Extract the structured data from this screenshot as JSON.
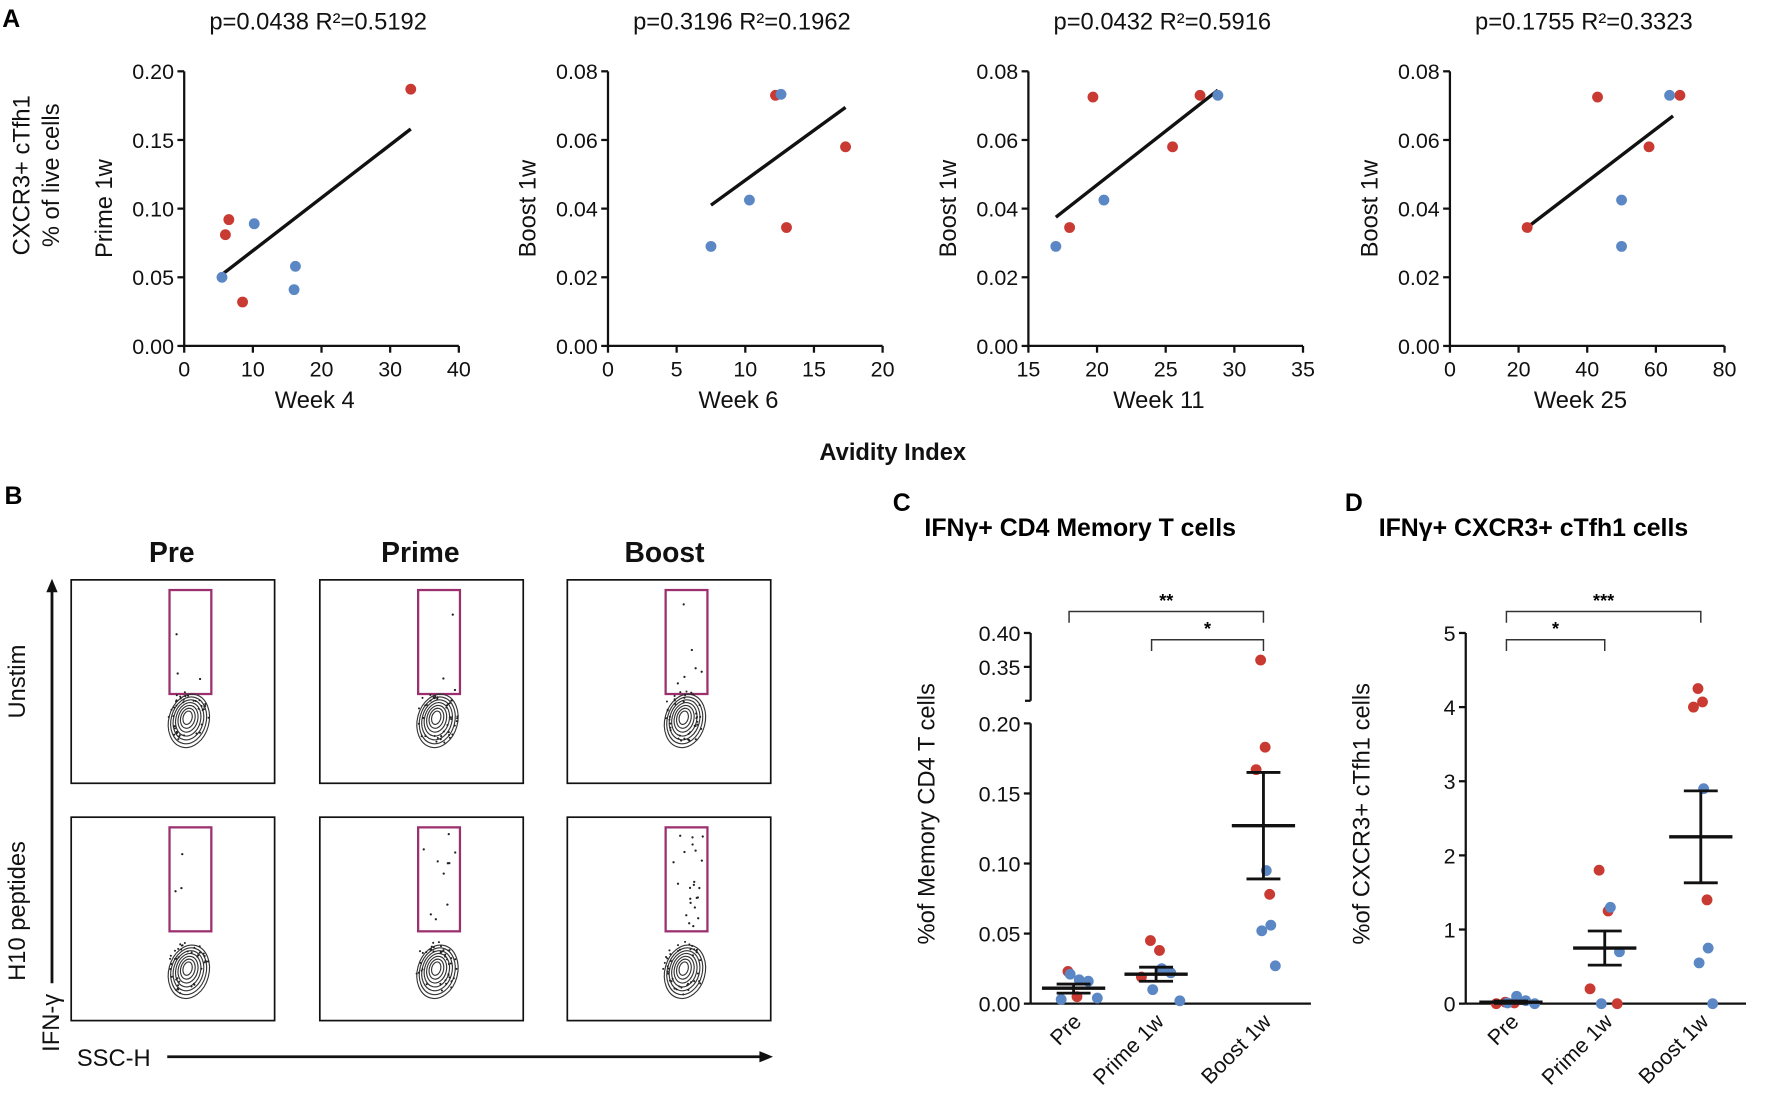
{
  "panel_labels": {
    "a": "A",
    "b": "B",
    "c": "C",
    "d": "D"
  },
  "shared_x_label": "Avidity Index",
  "panel_a_outer_ylabel": [
    "CXCR3+ cTfh1",
    "% of live cells"
  ],
  "colors": {
    "red": "#c83a32",
    "blue": "#5b87c5",
    "gate": "#9c2f6e",
    "line": "#111111"
  },
  "panel_b": {
    "columns": [
      "Pre",
      "Prime",
      "Boost"
    ],
    "rows": [
      "Unstim",
      "H10 peptides"
    ],
    "y_axis_label": "IFN-γ",
    "x_axis_label": "SSC-H"
  },
  "chart_data": [
    {
      "type": "scatter",
      "panel": "A1",
      "title": "p=0.0438 R²=0.5192",
      "xlabel": "Week 4",
      "ylabel": "Prime 1w",
      "xlim": [
        0,
        40
      ],
      "ylim": [
        0,
        0.2
      ],
      "xticks": [
        "0",
        "10",
        "20",
        "30",
        "40"
      ],
      "yticks": [
        "0.00",
        "0.05",
        "0.10",
        "0.15",
        "0.20"
      ],
      "series": [
        {
          "name": "red",
          "points": [
            [
              33,
              0.187
            ],
            [
              6.5,
              0.092
            ],
            [
              6,
              0.081
            ],
            [
              8.5,
              0.032
            ]
          ]
        },
        {
          "name": "blue",
          "points": [
            [
              10.2,
              0.089
            ],
            [
              16.2,
              0.058
            ],
            [
              16,
              0.041
            ],
            [
              5.5,
              0.05
            ]
          ]
        }
      ],
      "fit": [
        [
          5.5,
          0.052
        ],
        [
          33,
          0.158
        ]
      ]
    },
    {
      "type": "scatter",
      "panel": "A2",
      "title": "p=0.3196 R²=0.1962",
      "xlabel": "Week 6",
      "ylabel": "Boost 1w",
      "xlim": [
        0,
        20
      ],
      "ylim": [
        0,
        0.08
      ],
      "xticks": [
        "0",
        "5",
        "10",
        "15",
        "20"
      ],
      "yticks": [
        "0.00",
        "0.02",
        "0.04",
        "0.06",
        "0.08"
      ],
      "series": [
        {
          "name": "red",
          "points": [
            [
              12.2,
              0.073
            ],
            [
              13,
              0.0345
            ],
            [
              17.3,
              0.058
            ]
          ]
        },
        {
          "name": "blue",
          "points": [
            [
              7.5,
              0.029
            ],
            [
              10.3,
              0.0425
            ],
            [
              12.6,
              0.0733
            ]
          ]
        }
      ],
      "fit": [
        [
          7.5,
          0.041
        ],
        [
          17.3,
          0.0695
        ]
      ]
    },
    {
      "type": "scatter",
      "panel": "A3",
      "title": "p=0.0432 R²=0.5916",
      "xlabel": "Week 11",
      "ylabel": "Boost 1w",
      "xlim": [
        15,
        35
      ],
      "ylim": [
        0,
        0.08
      ],
      "xticks": [
        "15",
        "20",
        "25",
        "30",
        "35"
      ],
      "yticks": [
        "0.00",
        "0.02",
        "0.04",
        "0.06",
        "0.08"
      ],
      "series": [
        {
          "name": "red",
          "points": [
            [
              18,
              0.0345
            ],
            [
              19.7,
              0.0725
            ],
            [
              25.5,
              0.058
            ],
            [
              27.5,
              0.073
            ]
          ]
        },
        {
          "name": "blue",
          "points": [
            [
              17,
              0.029
            ],
            [
              20.5,
              0.0425
            ],
            [
              28.8,
              0.073
            ]
          ]
        }
      ],
      "fit": [
        [
          17,
          0.0375
        ],
        [
          28.8,
          0.0745
        ]
      ]
    },
    {
      "type": "scatter",
      "panel": "A4",
      "title": "p=0.1755 R²=0.3323",
      "xlabel": "Week 25",
      "ylabel": "Boost 1w",
      "xlim": [
        0,
        80
      ],
      "ylim": [
        0,
        0.08
      ],
      "xticks": [
        "0",
        "20",
        "40",
        "60",
        "80"
      ],
      "yticks": [
        "0.00",
        "0.02",
        "0.04",
        "0.06",
        "0.08"
      ],
      "series": [
        {
          "name": "red",
          "points": [
            [
              22.5,
              0.0345
            ],
            [
              43,
              0.0725
            ],
            [
              58,
              0.058
            ],
            [
              67,
              0.073
            ]
          ]
        },
        {
          "name": "blue",
          "points": [
            [
              64,
              0.073
            ],
            [
              50,
              0.0425
            ],
            [
              50,
              0.029
            ]
          ]
        }
      ],
      "fit": [
        [
          22.5,
          0.0345
        ],
        [
          65,
          0.067
        ]
      ]
    },
    {
      "type": "scatter",
      "panel": "C",
      "title": "IFNγ+ CD4 Memory T cells",
      "ylabel": "%of Memory CD4 T cells",
      "categories": [
        "Pre",
        "Prime 1w",
        "Boost 1w"
      ],
      "ylim": [
        0,
        0.4
      ],
      "axis_break": [
        0.2,
        0.3
      ],
      "yticks": [
        "0.00",
        "0.05",
        "0.10",
        "0.15",
        "0.20",
        "0.35",
        "0.40"
      ],
      "groups": [
        {
          "red": [
            0.023,
            0.005
          ],
          "blue": [
            0.017,
            0.016,
            0.021,
            0.004,
            0.003
          ],
          "mean": 0.011,
          "sem": [
            0.0075,
            0.014
          ]
        },
        {
          "red": [
            0.045,
            0.038,
            0.019
          ],
          "blue": [
            0.025,
            0.022,
            0.01,
            0.002
          ],
          "mean": 0.021,
          "sem": [
            0.016,
            0.026
          ]
        },
        {
          "red": [
            0.36,
            0.183,
            0.167,
            0.078
          ],
          "blue": [
            0.095,
            0.056,
            0.052,
            0.027
          ],
          "mean": 0.127,
          "sem": [
            0.089,
            0.165
          ]
        }
      ],
      "significance": [
        {
          "from": 0,
          "to": 2,
          "label": "**"
        },
        {
          "from": 1,
          "to": 2,
          "label": "*"
        }
      ]
    },
    {
      "type": "scatter",
      "panel": "D",
      "title": "IFNγ+ CXCR3+ cTfh1 cells",
      "ylabel": "%of CXCR3+ cTfh1 cells",
      "categories": [
        "Pre",
        "Prime 1w",
        "Boost 1w"
      ],
      "ylim": [
        0,
        5
      ],
      "yticks": [
        "0",
        "1",
        "2",
        "3",
        "4",
        "5"
      ],
      "groups": [
        {
          "red": [
            0.02,
            0.01,
            0.0
          ],
          "blue": [
            0.1,
            0.04,
            0.01,
            0.0
          ],
          "mean": 0.02,
          "sem": [
            0.005,
            0.035
          ]
        },
        {
          "red": [
            1.8,
            1.25,
            0.2,
            0.0
          ],
          "blue": [
            1.3,
            0.7,
            0.0
          ],
          "mean": 0.75,
          "sem": [
            0.52,
            0.98
          ]
        },
        {
          "red": [
            4.25,
            4.07,
            4.0,
            1.4
          ],
          "blue": [
            2.9,
            0.75,
            0.55,
            0.0
          ],
          "mean": 2.25,
          "sem": [
            1.63,
            2.87
          ]
        }
      ],
      "significance": [
        {
          "from": 0,
          "to": 2,
          "label": "***"
        },
        {
          "from": 0,
          "to": 1,
          "label": "*"
        }
      ]
    }
  ]
}
